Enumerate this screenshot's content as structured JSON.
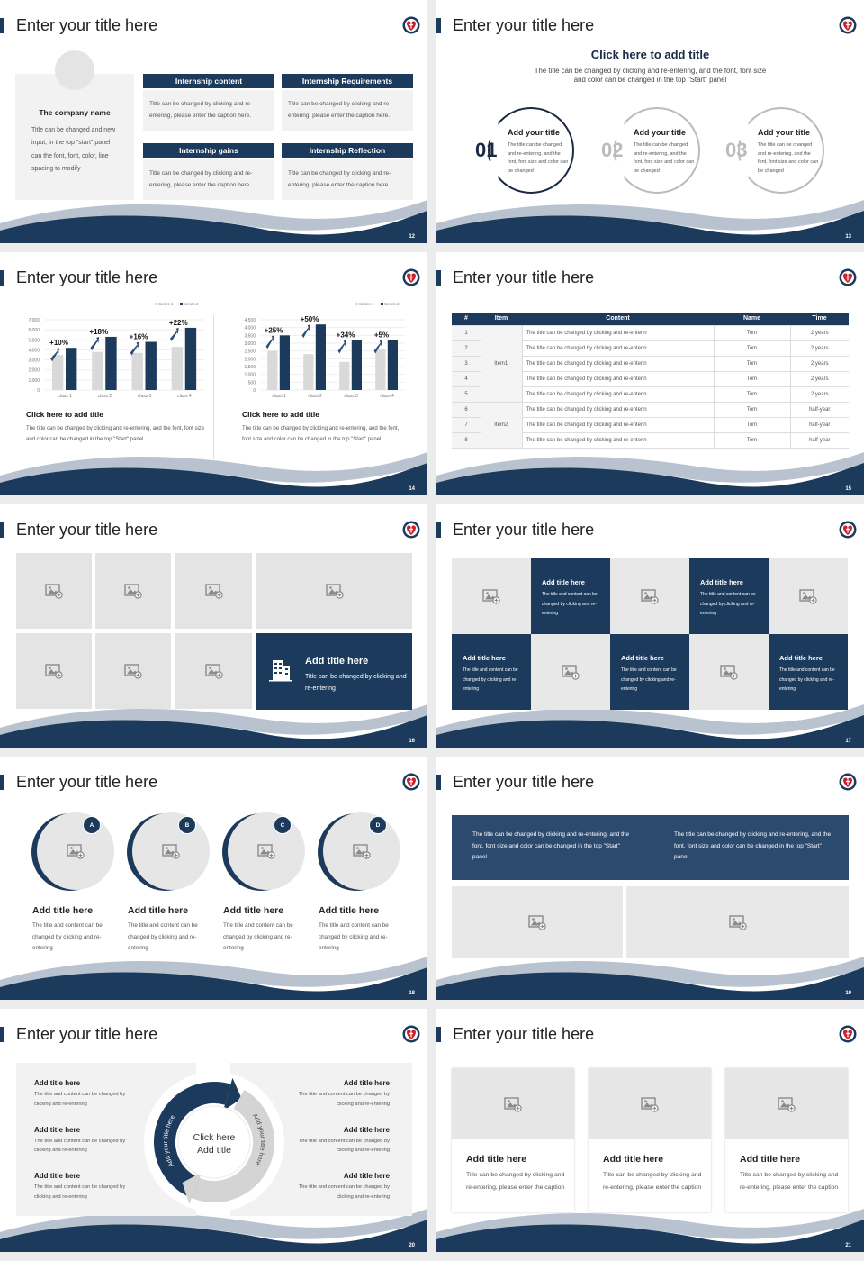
{
  "colors": {
    "navy": "#1b3a5c",
    "light_gray": "#e4e4e4",
    "series1": "#d9d9d9",
    "series2": "#1b3a5c"
  },
  "logo_icon": "heart-cross-crest-logo",
  "image_icon": "image-add-icon",
  "slides": [
    {
      "page": "12",
      "title": "Enter your title here",
      "company": {
        "name": "The company name",
        "text": "Title can be changed and new input, in the top \"start\" panel can the font, font, color, line spacing to modify"
      },
      "boxes": [
        {
          "header": "Internship content",
          "body": "Title can be changed by clicking and re-entering, please enter the caption here."
        },
        {
          "header": "Internship Requirements",
          "body": "Title can be changed by clicking and re-entering, please enter the caption here."
        },
        {
          "header": "Internship gains",
          "body": "Title can be changed by clicking and re-entering, please enter the caption here."
        },
        {
          "header": "Internship Reflection",
          "body": "Title can be changed by clicking and re-entering, please enter the caption here."
        }
      ]
    },
    {
      "page": "13",
      "title": "Enter your title here",
      "heading": "Click here to add title",
      "subtitle": "The title can be changed by clicking and re-entering, and the font, font size and color can be changed in the top \"Start\" panel",
      "items": [
        {
          "num": "01",
          "title": "Add your title",
          "text": "The title can be changed and re-entering, and the font, font size and color can be changed"
        },
        {
          "num": "02",
          "title": "Add your title",
          "text": "The title can be changed and re-entering, and the font, font size and color can be changed"
        },
        {
          "num": "03",
          "title": "Add your title",
          "text": "The title can be changed and re-entering, and the font, font size and color can be changed"
        }
      ]
    },
    {
      "page": "14",
      "title": "Enter your title here",
      "panels": [
        {
          "title": "Click here to add title",
          "text": "The title can be changed by clicking and re-entering, and the font, font size and color can be changed in the top \"Start\" panel"
        },
        {
          "title": "Click here to add title",
          "text": "The title can be changed by clicking and re-entering, and the font, font size and color can be changed in the top \"Start\" panel"
        }
      ]
    },
    {
      "page": "15",
      "title": "Enter your title here",
      "table": {
        "headers": [
          "#",
          "Item",
          "Content",
          "Name",
          "Time"
        ],
        "groups": [
          {
            "item": "Item1",
            "start": 0,
            "span": 5
          },
          {
            "item": "Item2",
            "start": 5,
            "span": 3
          }
        ],
        "rows": [
          [
            "1",
            "The title can be changed by clicking and re-enterin",
            "Tom",
            "2 years"
          ],
          [
            "2",
            "The title can be changed by clicking and re-enterin",
            "Tom",
            "2 years"
          ],
          [
            "3",
            "The title can be changed by clicking and re-enterin",
            "Tom",
            "2 years"
          ],
          [
            "4",
            "The title can be changed by clicking and re-enterin",
            "Tom",
            "2 years"
          ],
          [
            "5",
            "The title can be changed by clicking and re-enterin",
            "Tom",
            "2 years"
          ],
          [
            "6",
            "The title can be changed by clicking and re-enterin",
            "Tom",
            "half-year"
          ],
          [
            "7",
            "The title can be changed by clicking and re-enterin",
            "Tom",
            "half-year"
          ],
          [
            "8",
            "The title can be changed by clicking and re-enterin",
            "Tom",
            "half-year"
          ]
        ]
      }
    },
    {
      "page": "16",
      "title": "Enter your title here",
      "feature": {
        "icon": "building-icon",
        "title": "Add title here",
        "text": "Title can be changed by clicking and re-entering"
      }
    },
    {
      "page": "17",
      "title": "Enter your title here",
      "tiles": [
        {
          "title": "Add title here",
          "text": "The title and content can be changed by clicking and re-entering"
        },
        {
          "title": "Add title here",
          "text": "The title and content can be changed by clicking and re-entering"
        },
        {
          "title": "Add title here",
          "text": "The title and content can be changed by clicking and re-entering"
        },
        {
          "title": "Add title here",
          "text": "The title and content can be changed by clicking and re-entering"
        },
        {
          "title": "Add title here",
          "text": "The title and content can be changed by clicking and re-entering"
        }
      ]
    },
    {
      "page": "18",
      "title": "Enter your title here",
      "items": [
        {
          "badge": "A",
          "title": "Add title here",
          "text": "The title and content can be changed by clicking and re-entering"
        },
        {
          "badge": "B",
          "title": "Add title here",
          "text": "The title and content can be changed by clicking and re-entering"
        },
        {
          "badge": "C",
          "title": "Add title here",
          "text": "The title and content can be changed by clicking and re-entering"
        },
        {
          "badge": "D",
          "title": "Add title here",
          "text": "The title and content can be changed by clicking and re-entering"
        }
      ]
    },
    {
      "page": "19",
      "title": "Enter your title here",
      "texts": [
        "The title can be changed by clicking and re-entering, and the font, font size and color can be changed in the top \"Start\" panel",
        "The title can be changed by clicking and re-entering, and the font, font size and color can be changed in the top \"Start\" panel"
      ]
    },
    {
      "page": "20",
      "title": "Enter your title here",
      "left": [
        {
          "title": "Add title here",
          "text": "The title and content can be changed by clicking and re-entering"
        },
        {
          "title": "Add title here",
          "text": "The title and content can be changed by clicking and re-entering"
        },
        {
          "title": "Add title here",
          "text": "The title and content can be changed by clicking and re-entering"
        }
      ],
      "right": [
        {
          "title": "Add title here",
          "text": "The title and content can be changed by clicking and re-entering"
        },
        {
          "title": "Add title here",
          "text": "The title and content can be changed by clicking and re-entering"
        },
        {
          "title": "Add title here",
          "text": "The title and content can be changed by clicking and re-entering"
        }
      ],
      "center": [
        "Click here",
        "Add title"
      ],
      "arc_left": "Add your title here",
      "arc_right": "Add your title here"
    },
    {
      "page": "21",
      "title": "Enter your title here",
      "cards": [
        {
          "title": "Add title here",
          "text": "Title can be changed by clicking and re-entering, please enter the caption"
        },
        {
          "title": "Add title here",
          "text": "Title can be changed by clicking and re-entering, please enter the caption"
        },
        {
          "title": "Add title here",
          "text": "Title can be changed by clicking and re-entering, please enter the caption"
        }
      ]
    }
  ],
  "chart_data": [
    {
      "type": "bar",
      "categories": [
        "class 1",
        "class 2",
        "class 3",
        "class 4"
      ],
      "series": [
        {
          "name": "Series 1",
          "values": [
            3500,
            3800,
            3700,
            4300
          ]
        },
        {
          "name": "Series 2",
          "values": [
            4200,
            5300,
            4800,
            6200
          ]
        }
      ],
      "annotations": [
        "+10%",
        "+18%",
        "+16%",
        "+22%"
      ],
      "ylim": [
        0,
        7000
      ],
      "yticks": [
        "0",
        "1,000",
        "2,000",
        "3,000",
        "4,000",
        "5,000",
        "6,000",
        "7,000"
      ],
      "legend": "top-right",
      "grid": true
    },
    {
      "type": "bar",
      "categories": [
        "class 1",
        "class 2",
        "class 3",
        "class 4"
      ],
      "series": [
        {
          "name": "Series 1",
          "values": [
            2500,
            2300,
            1800,
            2600
          ]
        },
        {
          "name": "Series 2",
          "values": [
            3500,
            4200,
            3200,
            3200
          ]
        }
      ],
      "annotations": [
        "+25%",
        "+50%",
        "+34%",
        "+5%"
      ],
      "ylim": [
        0,
        4500
      ],
      "yticks": [
        "0",
        "500",
        "1,000",
        "1,500",
        "2,000",
        "2,500",
        "3,000",
        "3,500",
        "4,000",
        "4,500"
      ],
      "legend": "top-right",
      "grid": true
    }
  ]
}
